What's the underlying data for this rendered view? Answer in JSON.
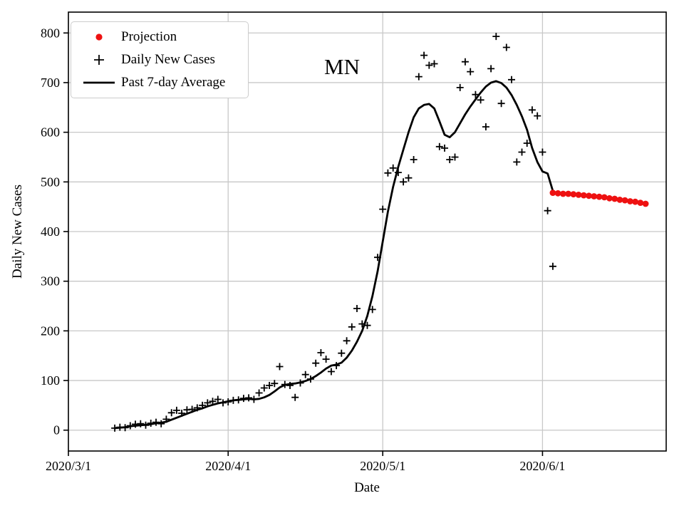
{
  "chart_data": {
    "type": "scatter",
    "title": "MN",
    "xlabel": "Date",
    "ylabel": "Daily New Cases",
    "grid": true,
    "legend_position": "upper left",
    "xlim_dates": [
      "2020-03-01",
      "2020-06-25"
    ],
    "ylim": [
      -42,
      842
    ],
    "x_ticks": [
      {
        "date": "2020-03-01",
        "label": "2020/3/1"
      },
      {
        "date": "2020-04-01",
        "label": "2020/4/1"
      },
      {
        "date": "2020-05-01",
        "label": "2020/5/1"
      },
      {
        "date": "2020-06-01",
        "label": "2020/6/1"
      }
    ],
    "y_ticks": [
      0,
      100,
      200,
      300,
      400,
      500,
      600,
      700,
      800
    ],
    "colors": {
      "projection": "#ee1111",
      "cases": "#000000",
      "average": "#000000",
      "grid": "#c8c8c8",
      "frame": "#000000"
    },
    "legend": [
      {
        "label": "Projection",
        "marker": "dot"
      },
      {
        "label": "Daily New Cases",
        "marker": "plus"
      },
      {
        "label": "Past 7-day Average",
        "marker": "line"
      }
    ],
    "series": [
      {
        "name": "Daily New Cases",
        "type": "scatter-plus",
        "points": [
          [
            "2020-03-10",
            4
          ],
          [
            "2020-03-11",
            6
          ],
          [
            "2020-03-12",
            5
          ],
          [
            "2020-03-13",
            9
          ],
          [
            "2020-03-14",
            12
          ],
          [
            "2020-03-15",
            13
          ],
          [
            "2020-03-16",
            10
          ],
          [
            "2020-03-17",
            14
          ],
          [
            "2020-03-18",
            16
          ],
          [
            "2020-03-19",
            13
          ],
          [
            "2020-03-20",
            22
          ],
          [
            "2020-03-21",
            35
          ],
          [
            "2020-03-22",
            40
          ],
          [
            "2020-03-23",
            34
          ],
          [
            "2020-03-24",
            41
          ],
          [
            "2020-03-25",
            42
          ],
          [
            "2020-03-26",
            45
          ],
          [
            "2020-03-27",
            50
          ],
          [
            "2020-03-28",
            55
          ],
          [
            "2020-03-29",
            58
          ],
          [
            "2020-03-30",
            62
          ],
          [
            "2020-03-31",
            55
          ],
          [
            "2020-04-01",
            57
          ],
          [
            "2020-04-02",
            60
          ],
          [
            "2020-04-03",
            61
          ],
          [
            "2020-04-04",
            64
          ],
          [
            "2020-04-05",
            65
          ],
          [
            "2020-04-06",
            62
          ],
          [
            "2020-04-07",
            75
          ],
          [
            "2020-04-08",
            85
          ],
          [
            "2020-04-09",
            90
          ],
          [
            "2020-04-10",
            94
          ],
          [
            "2020-04-11",
            128
          ],
          [
            "2020-04-12",
            92
          ],
          [
            "2020-04-13",
            90
          ],
          [
            "2020-04-14",
            66
          ],
          [
            "2020-04-15",
            95
          ],
          [
            "2020-04-16",
            112
          ],
          [
            "2020-04-17",
            103
          ],
          [
            "2020-04-18",
            135
          ],
          [
            "2020-04-19",
            156
          ],
          [
            "2020-04-20",
            143
          ],
          [
            "2020-04-21",
            118
          ],
          [
            "2020-04-22",
            130
          ],
          [
            "2020-04-23",
            155
          ],
          [
            "2020-04-24",
            180
          ],
          [
            "2020-04-25",
            208
          ],
          [
            "2020-04-26",
            245
          ],
          [
            "2020-04-27",
            214
          ],
          [
            "2020-04-28",
            211
          ],
          [
            "2020-04-29",
            243
          ],
          [
            "2020-04-30",
            348
          ],
          [
            "2020-05-01",
            445
          ],
          [
            "2020-05-02",
            518
          ],
          [
            "2020-05-03",
            528
          ],
          [
            "2020-05-04",
            519
          ],
          [
            "2020-05-05",
            500
          ],
          [
            "2020-05-06",
            508
          ],
          [
            "2020-05-07",
            545
          ],
          [
            "2020-05-08",
            712
          ],
          [
            "2020-05-09",
            755
          ],
          [
            "2020-05-10",
            735
          ],
          [
            "2020-05-11",
            738
          ],
          [
            "2020-05-12",
            571
          ],
          [
            "2020-05-13",
            568
          ],
          [
            "2020-05-14",
            545
          ],
          [
            "2020-05-15",
            550
          ],
          [
            "2020-05-16",
            690
          ],
          [
            "2020-05-17",
            742
          ],
          [
            "2020-05-18",
            722
          ],
          [
            "2020-05-19",
            676
          ],
          [
            "2020-05-20",
            665
          ],
          [
            "2020-05-21",
            611
          ],
          [
            "2020-05-22",
            728
          ],
          [
            "2020-05-23",
            793
          ],
          [
            "2020-05-24",
            658
          ],
          [
            "2020-05-25",
            771
          ],
          [
            "2020-05-26",
            706
          ],
          [
            "2020-05-27",
            540
          ],
          [
            "2020-05-28",
            560
          ],
          [
            "2020-05-29",
            578
          ],
          [
            "2020-05-30",
            645
          ],
          [
            "2020-05-31",
            633
          ],
          [
            "2020-06-01",
            560
          ],
          [
            "2020-06-02",
            442
          ],
          [
            "2020-06-03",
            330
          ]
        ]
      },
      {
        "name": "Past 7-day Average",
        "type": "line",
        "points": [
          [
            "2020-03-10",
            4
          ],
          [
            "2020-03-11",
            5
          ],
          [
            "2020-03-12",
            6
          ],
          [
            "2020-03-13",
            8
          ],
          [
            "2020-03-14",
            9
          ],
          [
            "2020-03-15",
            10
          ],
          [
            "2020-03-16",
            11
          ],
          [
            "2020-03-17",
            12
          ],
          [
            "2020-03-18",
            14
          ],
          [
            "2020-03-19",
            15
          ],
          [
            "2020-03-20",
            17
          ],
          [
            "2020-03-21",
            21
          ],
          [
            "2020-03-22",
            25
          ],
          [
            "2020-03-23",
            29
          ],
          [
            "2020-03-24",
            33
          ],
          [
            "2020-03-25",
            37
          ],
          [
            "2020-03-26",
            41
          ],
          [
            "2020-03-27",
            44
          ],
          [
            "2020-03-28",
            48
          ],
          [
            "2020-03-29",
            51
          ],
          [
            "2020-03-30",
            54
          ],
          [
            "2020-03-31",
            56
          ],
          [
            "2020-04-01",
            58
          ],
          [
            "2020-04-02",
            60
          ],
          [
            "2020-04-03",
            61
          ],
          [
            "2020-04-04",
            62
          ],
          [
            "2020-04-05",
            63
          ],
          [
            "2020-04-06",
            62
          ],
          [
            "2020-04-07",
            63
          ],
          [
            "2020-04-08",
            66
          ],
          [
            "2020-04-09",
            71
          ],
          [
            "2020-04-10",
            78
          ],
          [
            "2020-04-11",
            86
          ],
          [
            "2020-04-12",
            91
          ],
          [
            "2020-04-13",
            93
          ],
          [
            "2020-04-14",
            94
          ],
          [
            "2020-04-15",
            96
          ],
          [
            "2020-04-16",
            99
          ],
          [
            "2020-04-17",
            103
          ],
          [
            "2020-04-18",
            109
          ],
          [
            "2020-04-19",
            116
          ],
          [
            "2020-04-20",
            124
          ],
          [
            "2020-04-21",
            130
          ],
          [
            "2020-04-22",
            132
          ],
          [
            "2020-04-23",
            136
          ],
          [
            "2020-04-24",
            146
          ],
          [
            "2020-04-25",
            160
          ],
          [
            "2020-04-26",
            178
          ],
          [
            "2020-04-27",
            200
          ],
          [
            "2020-04-28",
            230
          ],
          [
            "2020-04-29",
            270
          ],
          [
            "2020-04-30",
            320
          ],
          [
            "2020-05-01",
            380
          ],
          [
            "2020-05-02",
            440
          ],
          [
            "2020-05-03",
            490
          ],
          [
            "2020-05-04",
            530
          ],
          [
            "2020-05-05",
            565
          ],
          [
            "2020-05-06",
            600
          ],
          [
            "2020-05-07",
            630
          ],
          [
            "2020-05-08",
            648
          ],
          [
            "2020-05-09",
            655
          ],
          [
            "2020-05-10",
            657
          ],
          [
            "2020-05-11",
            648
          ],
          [
            "2020-05-12",
            622
          ],
          [
            "2020-05-13",
            595
          ],
          [
            "2020-05-14",
            590
          ],
          [
            "2020-05-15",
            600
          ],
          [
            "2020-05-16",
            618
          ],
          [
            "2020-05-17",
            636
          ],
          [
            "2020-05-18",
            652
          ],
          [
            "2020-05-19",
            666
          ],
          [
            "2020-05-20",
            680
          ],
          [
            "2020-05-21",
            692
          ],
          [
            "2020-05-22",
            700
          ],
          [
            "2020-05-23",
            703
          ],
          [
            "2020-05-24",
            699
          ],
          [
            "2020-05-25",
            690
          ],
          [
            "2020-05-26",
            675
          ],
          [
            "2020-05-27",
            655
          ],
          [
            "2020-05-28",
            632
          ],
          [
            "2020-05-29",
            605
          ],
          [
            "2020-05-30",
            568
          ],
          [
            "2020-05-31",
            540
          ],
          [
            "2020-06-01",
            521
          ],
          [
            "2020-06-02",
            517
          ],
          [
            "2020-06-03",
            482
          ]
        ]
      },
      {
        "name": "Projection",
        "type": "scatter-dot",
        "points": [
          [
            "2020-06-03",
            478
          ],
          [
            "2020-06-04",
            477
          ],
          [
            "2020-06-05",
            476
          ],
          [
            "2020-06-06",
            476
          ],
          [
            "2020-06-07",
            475
          ],
          [
            "2020-06-08",
            474
          ],
          [
            "2020-06-09",
            473
          ],
          [
            "2020-06-10",
            472
          ],
          [
            "2020-06-11",
            471
          ],
          [
            "2020-06-12",
            470
          ],
          [
            "2020-06-13",
            469
          ],
          [
            "2020-06-14",
            467
          ],
          [
            "2020-06-15",
            466
          ],
          [
            "2020-06-16",
            464
          ],
          [
            "2020-06-17",
            463
          ],
          [
            "2020-06-18",
            461
          ],
          [
            "2020-06-19",
            460
          ],
          [
            "2020-06-20",
            458
          ],
          [
            "2020-06-21",
            456
          ]
        ]
      }
    ]
  }
}
